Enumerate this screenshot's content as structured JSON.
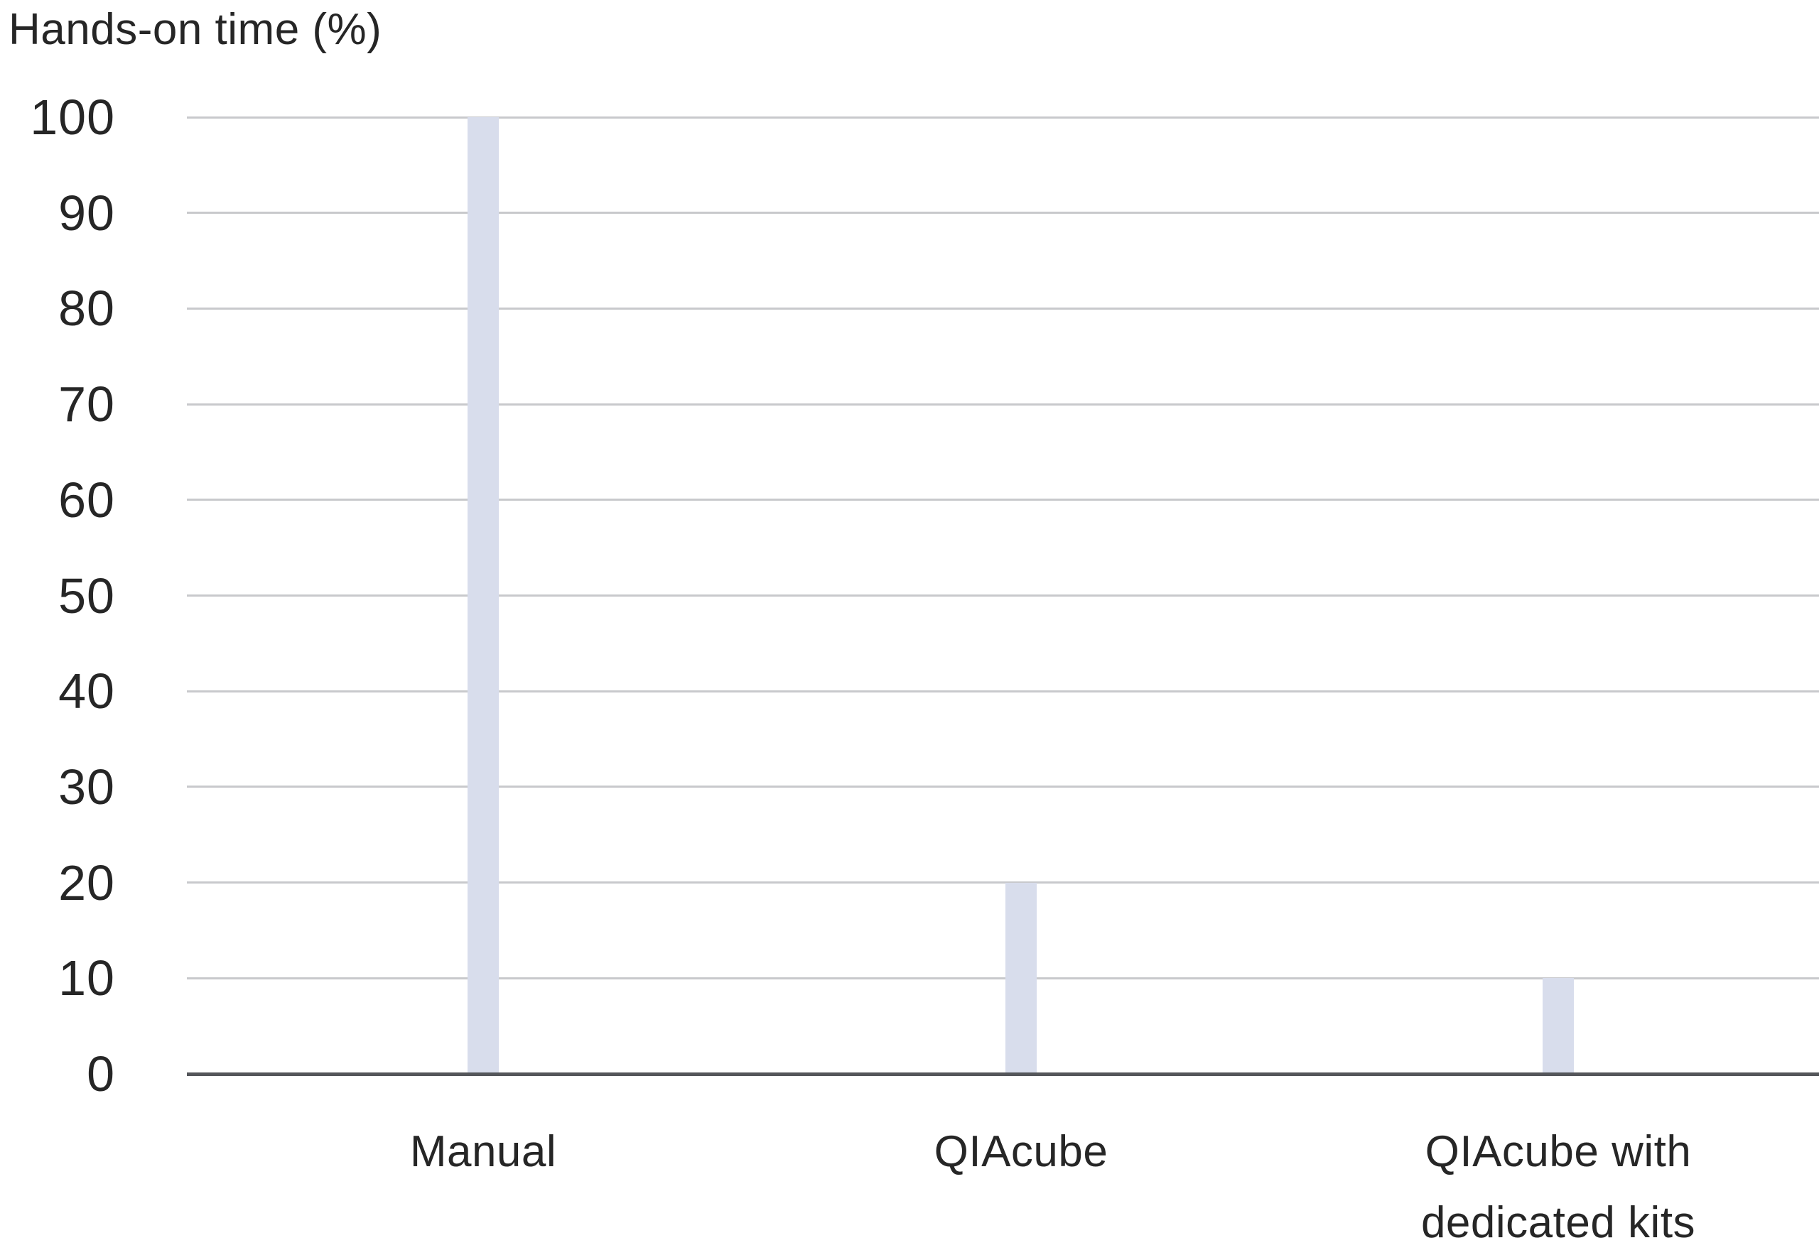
{
  "chart_data": {
    "type": "bar",
    "title": "",
    "ylabel": "Hands-on time (%)",
    "xlabel": "",
    "categories": [
      {
        "label": "Manual",
        "lines": [
          "Manual"
        ]
      },
      {
        "label": "QIAcube",
        "lines": [
          "QIAcube"
        ]
      },
      {
        "label": "QIAcube with dedicated kits",
        "lines": [
          "QIAcube with",
          "dedicated kits"
        ]
      }
    ],
    "values": [
      100,
      20,
      10
    ],
    "ylim": [
      0,
      100
    ],
    "yticks": [
      0,
      10,
      20,
      30,
      40,
      50,
      60,
      70,
      80,
      90,
      100
    ],
    "grid": true,
    "legend": "none",
    "colors": {
      "bar": "#d8ddec",
      "gridline": "#c8c9cc",
      "axis": "#54565a",
      "text": "#262626"
    }
  }
}
